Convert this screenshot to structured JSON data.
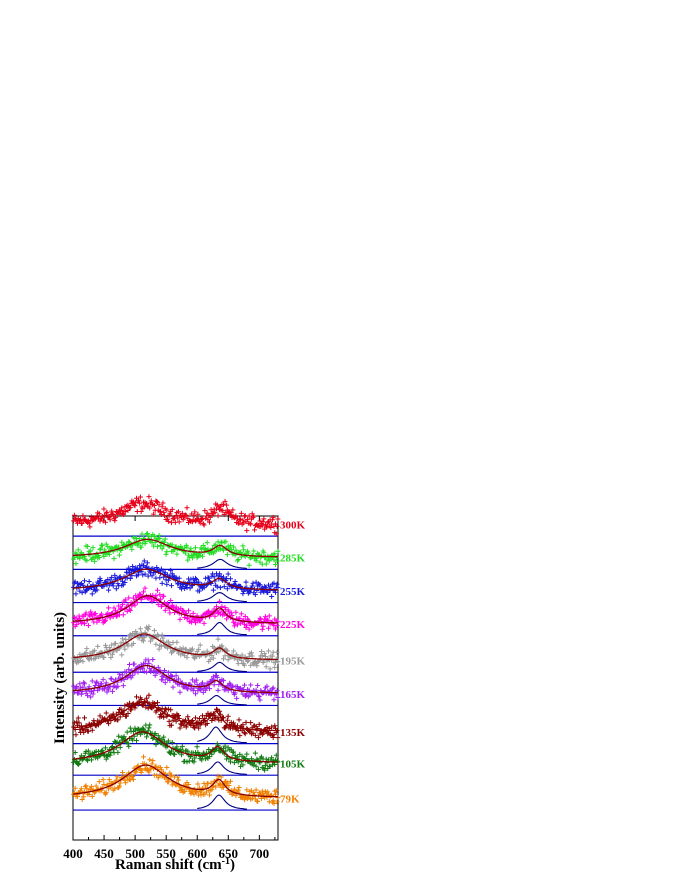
{
  "chart_data": {
    "type": "scatter",
    "xlabel": "Raman shift (cm",
    "xlabel_sup": "-1",
    "xlabel_close": ")",
    "ylabel": "Intensity (arb. units)",
    "xlim": [
      400,
      730
    ],
    "x_ticks": [
      400,
      450,
      500,
      550,
      600,
      650,
      700
    ],
    "grid": false,
    "legend": "labels at right end of each spectrum",
    "series": [
      {
        "label": "300K",
        "color": "#e8001a",
        "baseline": 8.55,
        "peak1": {
          "center": 512,
          "width": 45,
          "amp": 0.62
        },
        "peak2": {
          "center": 638,
          "width": 14,
          "amp": 0.45
        },
        "fit": false
      },
      {
        "label": "285K",
        "color": "#22dd22",
        "baseline": 7.55,
        "peak1": {
          "center": 520,
          "width": 45,
          "amp": 0.55
        },
        "peak2": {
          "center": 637,
          "width": 14,
          "amp": 0.3
        },
        "fit": true
      },
      {
        "label": "255K",
        "color": "#1a1adb",
        "baseline": 6.55,
        "peak1": {
          "center": 518,
          "width": 45,
          "amp": 0.65
        },
        "peak2": {
          "center": 636,
          "width": 14,
          "amp": 0.3
        },
        "fit": true
      },
      {
        "label": "225K",
        "color": "#ff00dd",
        "baseline": 5.55,
        "peak1": {
          "center": 520,
          "width": 40,
          "amp": 0.85
        },
        "peak2": {
          "center": 636,
          "width": 12,
          "amp": 0.4
        },
        "fit": true
      },
      {
        "label": "195K",
        "color": "#999999",
        "baseline": 4.45,
        "peak1": {
          "center": 515,
          "width": 42,
          "amp": 0.8
        },
        "peak2": {
          "center": 636,
          "width": 12,
          "amp": 0.3
        },
        "fit": true
      },
      {
        "label": "165K",
        "color": "#a020f0",
        "baseline": 3.45,
        "peak1": {
          "center": 518,
          "width": 42,
          "amp": 0.85
        },
        "peak2": {
          "center": 631,
          "width": 12,
          "amp": 0.3
        },
        "fit": true
      },
      {
        "label": "135K",
        "color": "#8b0000",
        "baseline": 2.3,
        "peak1": {
          "center": 512,
          "width": 45,
          "amp": 0.9
        },
        "peak2": {
          "center": 630,
          "width": 12,
          "amp": 0.5
        },
        "fit": true
      },
      {
        "label": "105K",
        "color": "#107a10",
        "baseline": 1.35,
        "peak1": {
          "center": 512,
          "width": 45,
          "amp": 0.95
        },
        "peak2": {
          "center": 633,
          "width": 12,
          "amp": 0.4
        },
        "fit": true
      },
      {
        "label": "79K",
        "color": "#f08000",
        "baseline": 0.3,
        "peak1": {
          "center": 517,
          "width": 45,
          "amp": 1.0
        },
        "peak2": {
          "center": 635,
          "width": 12,
          "amp": 0.45
        },
        "fit": true
      }
    ]
  }
}
